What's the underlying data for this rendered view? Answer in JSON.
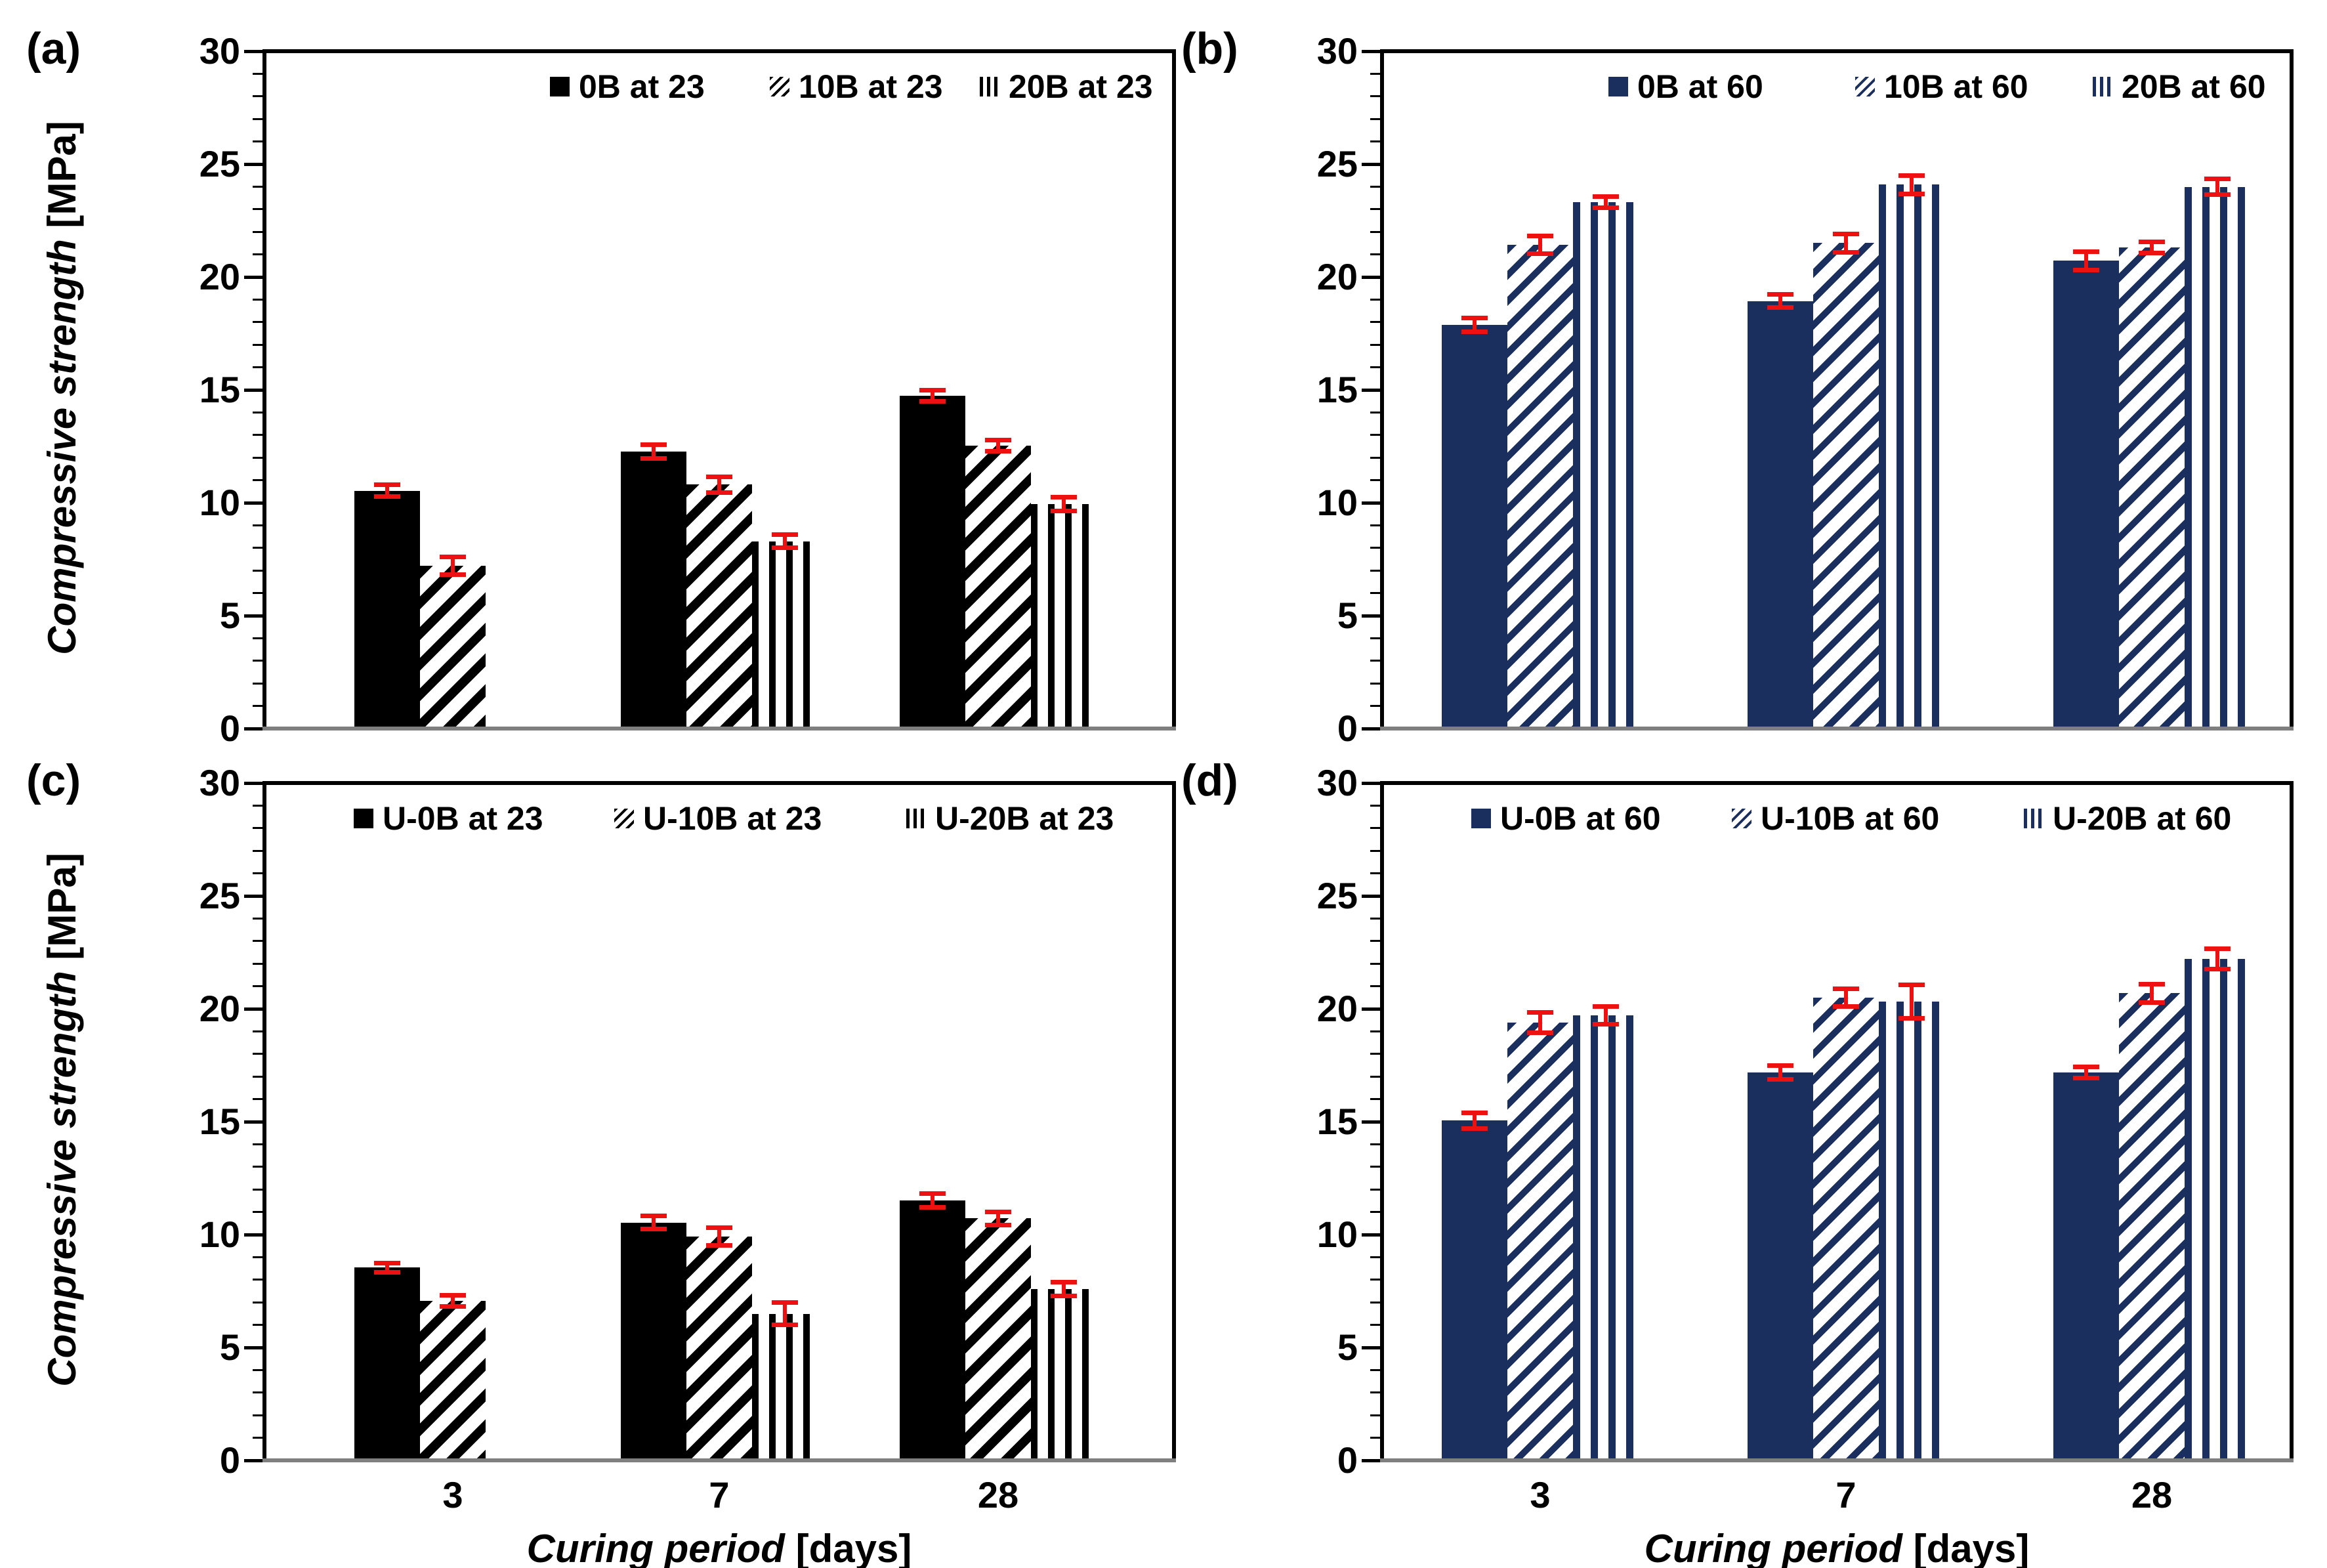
{
  "palette": {
    "black": "#000000",
    "navy": "#1a2f5e",
    "error_bar": "#ee1111",
    "baseline_gray": "#7f7f7f",
    "frame": "#000000",
    "background": "#ffffff"
  },
  "axes": {
    "y_title_main": "Compressive strength",
    "y_title_unit": " [MPa]",
    "x_title_main": "Curing period",
    "x_title_unit": " [days]",
    "ylim": [
      0,
      30
    ],
    "y_major_ticks": [
      0,
      5,
      10,
      15,
      20,
      25,
      30
    ],
    "y_minor_step": 1,
    "x_categories": [
      "3",
      "7",
      "28"
    ]
  },
  "chart_data": [
    {
      "id": "a",
      "panel_label": "(a)",
      "type": "bar",
      "color_key": "black",
      "show_y_title": true,
      "show_x_labels": false,
      "show_x_title": false,
      "categories": [
        "3",
        "7",
        "28"
      ],
      "series": [
        {
          "name": "0B at 23",
          "pattern": "solid",
          "values": [
            10.45,
            12.18,
            14.66
          ],
          "errors": [
            0.35,
            0.4,
            0.35
          ]
        },
        {
          "name": "10B at 23",
          "pattern": "diag",
          "values": [
            7.12,
            10.72,
            12.43
          ],
          "errors": [
            0.5,
            0.45,
            0.35
          ]
        },
        {
          "name": "20B at 23",
          "pattern": "vert",
          "values": [
            null,
            8.21,
            9.86
          ],
          "errors": [
            null,
            0.4,
            0.4
          ]
        }
      ]
    },
    {
      "id": "b",
      "panel_label": "(b)",
      "type": "bar",
      "color_key": "navy",
      "show_y_title": false,
      "show_x_labels": false,
      "show_x_title": false,
      "categories": [
        "3",
        "7",
        "28"
      ],
      "series": [
        {
          "name": "0B at 60",
          "pattern": "solid",
          "values": [
            17.79,
            18.85,
            20.63
          ],
          "errors": [
            0.4,
            0.4,
            0.5
          ]
        },
        {
          "name": "10B at 60",
          "pattern": "diag",
          "values": [
            21.33,
            21.41,
            21.23
          ],
          "errors": [
            0.5,
            0.5,
            0.35
          ]
        },
        {
          "name": "20B at 60",
          "pattern": "vert",
          "values": [
            23.22,
            24,
            23.9
          ],
          "errors": [
            0.35,
            0.5,
            0.45
          ]
        }
      ]
    },
    {
      "id": "c",
      "panel_label": "(c)",
      "type": "bar",
      "color_key": "black",
      "show_y_title": true,
      "show_x_labels": true,
      "show_x_title": true,
      "categories": [
        "3",
        "7",
        "28"
      ],
      "series": [
        {
          "name": "U-0B at 23",
          "pattern": "solid",
          "values": [
            8.45,
            10.45,
            11.43
          ],
          "errors": [
            0.3,
            0.4,
            0.4
          ]
        },
        {
          "name": "U-10B at 23",
          "pattern": "diag",
          "values": [
            6.98,
            9.83,
            10.63
          ],
          "errors": [
            0.35,
            0.5,
            0.4
          ]
        },
        {
          "name": "U-20B at 23",
          "pattern": "vert",
          "values": [
            null,
            6.4,
            7.5
          ],
          "errors": [
            null,
            0.6,
            0.4
          ]
        }
      ]
    },
    {
      "id": "d",
      "panel_label": "(d)",
      "type": "bar",
      "color_key": "navy",
      "show_y_title": false,
      "show_x_labels": true,
      "show_x_title": true,
      "categories": [
        "3",
        "7",
        "28"
      ],
      "series": [
        {
          "name": "U-0B at 60",
          "pattern": "solid",
          "values": [
            14.96,
            17.09,
            17.1
          ],
          "errors": [
            0.45,
            0.4,
            0.35
          ]
        },
        {
          "name": "U-10B at 60",
          "pattern": "diag",
          "values": [
            19.3,
            20.41,
            20.6
          ],
          "errors": [
            0.55,
            0.5,
            0.5
          ]
        },
        {
          "name": "U-20B at 60",
          "pattern": "vert",
          "values": [
            19.62,
            20.24,
            22.13
          ],
          "errors": [
            0.5,
            0.85,
            0.55
          ]
        }
      ]
    }
  ]
}
